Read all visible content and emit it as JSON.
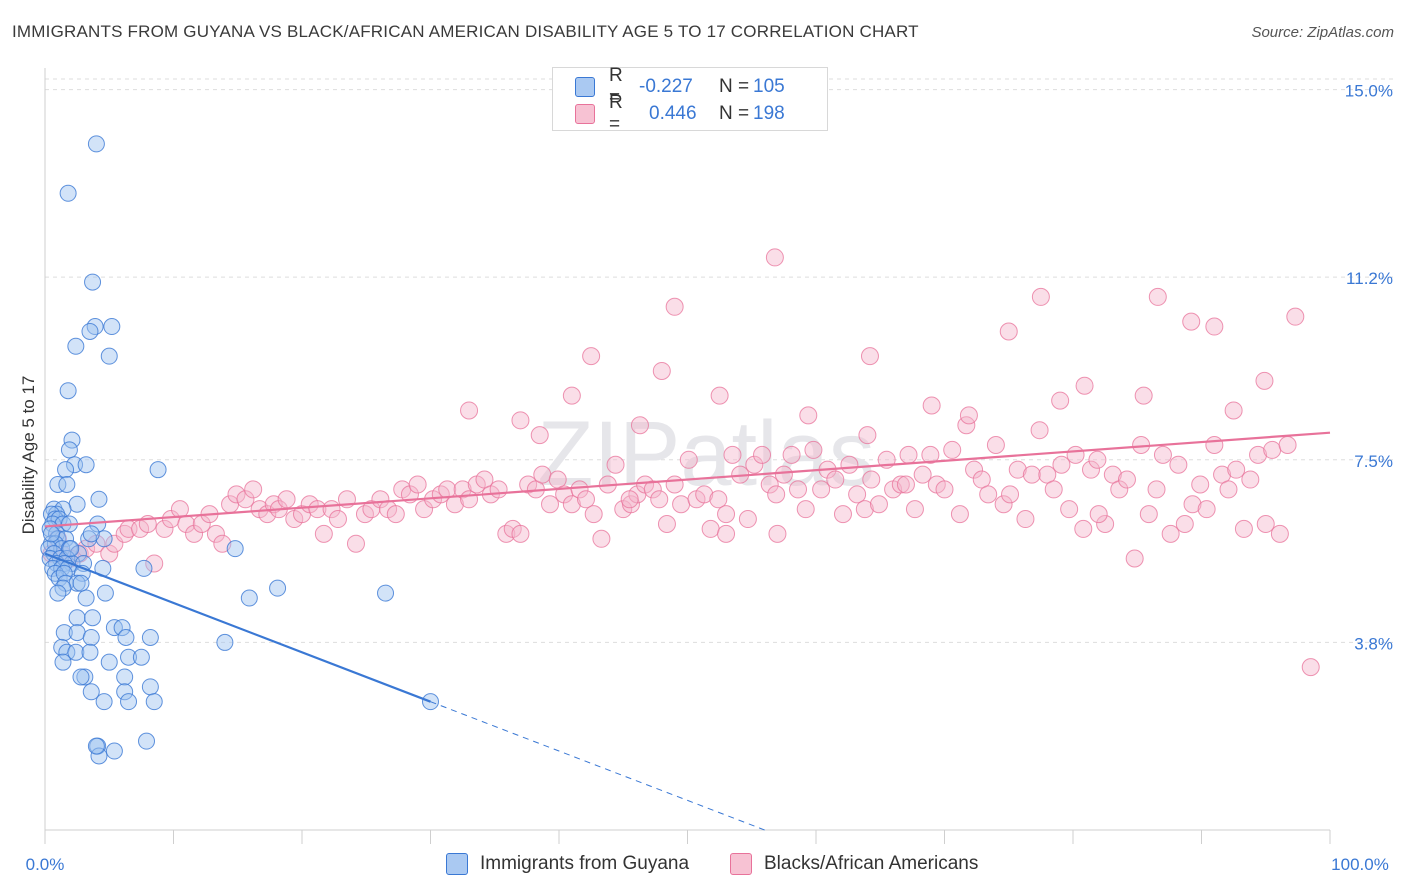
{
  "title": "IMMIGRANTS FROM GUYANA VS BLACK/AFRICAN AMERICAN DISABILITY AGE 5 TO 17 CORRELATION CHART",
  "source": "Source: ZipAtlas.com",
  "watermark": "ZIPatlas",
  "colors": {
    "blue": "#3a78d4",
    "blue_fill": "#9cc1ef",
    "pink": "#e8729a",
    "pink_fill": "#f5b6cb",
    "value_text": "#3a78d4",
    "grid": "#dddddd"
  },
  "legend": {
    "rows": [
      {
        "r_label": "R =",
        "r_value": "-0.227",
        "n_label": "N =",
        "n_value": "105"
      },
      {
        "r_label": "R =",
        "r_value": "0.446",
        "n_label": "N =",
        "n_value": "198"
      }
    ]
  },
  "bottom_legend": {
    "series1": "Immigrants from Guyana",
    "series2": "Blacks/African Americans"
  },
  "chart_data": {
    "type": "scatter",
    "xlabel": "",
    "ylabel": "Disability Age 5 to 17",
    "xlim": [
      0,
      100
    ],
    "ylim": [
      0,
      15.6
    ],
    "x_tick_labels": [
      "0.0%",
      "100.0%"
    ],
    "y_ticks": [
      3.8,
      7.5,
      11.2,
      15.0
    ],
    "y_tick_labels": [
      "3.8%",
      "7.5%",
      "11.2%",
      "15.0%"
    ],
    "grid": "horizontal dashed",
    "legend_position": "top-center",
    "series": [
      {
        "name": "Immigrants from Guyana",
        "color": "#3a78d4",
        "r": -0.227,
        "n": 105,
        "trend": {
          "x": [
            0,
            30
          ],
          "y": [
            5.6,
            2.6
          ],
          "extension_to": [
            56,
            0.0
          ]
        },
        "points": [
          [
            4,
            13.9
          ],
          [
            1.8,
            12.9
          ],
          [
            3.7,
            11.1
          ],
          [
            3.9,
            10.2
          ],
          [
            5.2,
            10.2
          ],
          [
            3.5,
            10.1
          ],
          [
            2.4,
            9.8
          ],
          [
            5.0,
            9.6
          ],
          [
            1.8,
            8.9
          ],
          [
            2.1,
            7.9
          ],
          [
            1.9,
            7.7
          ],
          [
            2.3,
            7.4
          ],
          [
            3.2,
            7.4
          ],
          [
            1.6,
            7.3
          ],
          [
            8.8,
            7.3
          ],
          [
            1.0,
            7.0
          ],
          [
            1.7,
            7.0
          ],
          [
            2.5,
            6.6
          ],
          [
            4.2,
            6.7
          ],
          [
            0.7,
            6.5
          ],
          [
            1.4,
            6.5
          ],
          [
            0.9,
            6.4
          ],
          [
            0.5,
            6.4
          ],
          [
            0.8,
            6.3
          ],
          [
            1.1,
            6.3
          ],
          [
            0.6,
            6.2
          ],
          [
            1.4,
            6.2
          ],
          [
            4.1,
            6.2
          ],
          [
            0.4,
            6.1
          ],
          [
            0.9,
            6.0
          ],
          [
            1.0,
            5.9
          ],
          [
            1.6,
            5.9
          ],
          [
            3.4,
            5.9
          ],
          [
            4.6,
            5.9
          ],
          [
            0.5,
            5.8
          ],
          [
            0.8,
            5.8
          ],
          [
            1.3,
            5.7
          ],
          [
            0.3,
            5.7
          ],
          [
            1.9,
            5.7
          ],
          [
            0.7,
            5.6
          ],
          [
            2.6,
            5.6
          ],
          [
            0.4,
            5.5
          ],
          [
            1.2,
            5.5
          ],
          [
            1.7,
            5.5
          ],
          [
            0.9,
            5.4
          ],
          [
            2.1,
            5.4
          ],
          [
            3.0,
            5.4
          ],
          [
            1.5,
            5.4
          ],
          [
            0.6,
            5.3
          ],
          [
            4.5,
            5.3
          ],
          [
            1.3,
            5.3
          ],
          [
            1.8,
            5.3
          ],
          [
            2.9,
            5.2
          ],
          [
            7.7,
            5.3
          ],
          [
            0.8,
            5.2
          ],
          [
            1.1,
            5.1
          ],
          [
            1.5,
            5.2
          ],
          [
            14.8,
            5.7
          ],
          [
            1.6,
            5.0
          ],
          [
            2.5,
            5.0
          ],
          [
            1.4,
            4.9
          ],
          [
            1.0,
            4.8
          ],
          [
            4.7,
            4.8
          ],
          [
            18.1,
            4.9
          ],
          [
            26.5,
            4.8
          ],
          [
            3.2,
            4.7
          ],
          [
            15.9,
            4.7
          ],
          [
            2.5,
            4.3
          ],
          [
            3.7,
            4.3
          ],
          [
            1.5,
            4.0
          ],
          [
            2.5,
            4.0
          ],
          [
            5.4,
            4.1
          ],
          [
            6.0,
            4.1
          ],
          [
            3.6,
            3.9
          ],
          [
            6.3,
            3.9
          ],
          [
            8.2,
            3.9
          ],
          [
            14.0,
            3.8
          ],
          [
            1.3,
            3.7
          ],
          [
            1.7,
            3.6
          ],
          [
            2.4,
            3.6
          ],
          [
            3.5,
            3.6
          ],
          [
            1.4,
            3.4
          ],
          [
            5.0,
            3.4
          ],
          [
            6.5,
            3.5
          ],
          [
            7.5,
            3.5
          ],
          [
            3.1,
            3.1
          ],
          [
            6.2,
            3.1
          ],
          [
            2.8,
            3.1
          ],
          [
            3.6,
            2.8
          ],
          [
            6.2,
            2.8
          ],
          [
            8.2,
            2.9
          ],
          [
            4.6,
            2.6
          ],
          [
            6.5,
            2.6
          ],
          [
            8.5,
            2.6
          ],
          [
            30.0,
            2.6
          ],
          [
            7.9,
            1.8
          ],
          [
            4.1,
            1.7
          ],
          [
            4.2,
            1.5
          ],
          [
            5.4,
            1.6
          ],
          [
            4.0,
            1.7
          ],
          [
            2.0,
            5.7
          ],
          [
            0.5,
            6.0
          ],
          [
            1.9,
            6.2
          ],
          [
            3.6,
            6.0
          ],
          [
            2.8,
            5.0
          ]
        ]
      },
      {
        "name": "Blacks/African Americans",
        "color": "#e8729a",
        "r": 0.446,
        "n": 198,
        "trend": {
          "x": [
            0,
            100
          ],
          "y": [
            6.15,
            8.05
          ]
        },
        "points": [
          [
            0.5,
            5.6
          ],
          [
            1.0,
            5.9
          ],
          [
            1.3,
            5.6
          ],
          [
            2.0,
            5.5
          ],
          [
            2.7,
            5.6
          ],
          [
            3.2,
            5.7
          ],
          [
            4.0,
            5.8
          ],
          [
            5.0,
            5.6
          ],
          [
            5.4,
            5.8
          ],
          [
            6.2,
            6.0
          ],
          [
            6.5,
            6.1
          ],
          [
            7.4,
            6.1
          ],
          [
            8.0,
            6.2
          ],
          [
            8.5,
            5.4
          ],
          [
            9.3,
            6.1
          ],
          [
            9.8,
            6.3
          ],
          [
            10.5,
            6.5
          ],
          [
            11.0,
            6.2
          ],
          [
            11.6,
            6.0
          ],
          [
            12.2,
            6.2
          ],
          [
            12.8,
            6.4
          ],
          [
            13.3,
            6.0
          ],
          [
            13.8,
            5.8
          ],
          [
            14.4,
            6.6
          ],
          [
            14.9,
            6.8
          ],
          [
            15.6,
            6.7
          ],
          [
            16.2,
            6.9
          ],
          [
            16.7,
            6.5
          ],
          [
            17.3,
            6.4
          ],
          [
            17.8,
            6.6
          ],
          [
            18.2,
            6.5
          ],
          [
            18.8,
            6.7
          ],
          [
            19.4,
            6.3
          ],
          [
            20.0,
            6.4
          ],
          [
            20.6,
            6.6
          ],
          [
            21.2,
            6.5
          ],
          [
            21.7,
            6.0
          ],
          [
            22.3,
            6.5
          ],
          [
            22.8,
            6.3
          ],
          [
            23.5,
            6.7
          ],
          [
            24.2,
            5.8
          ],
          [
            24.9,
            6.4
          ],
          [
            25.4,
            6.5
          ],
          [
            26.1,
            6.7
          ],
          [
            26.7,
            6.5
          ],
          [
            27.3,
            6.4
          ],
          [
            27.8,
            6.9
          ],
          [
            28.4,
            6.8
          ],
          [
            29.0,
            7.0
          ],
          [
            29.5,
            6.5
          ],
          [
            30.2,
            6.7
          ],
          [
            30.8,
            6.8
          ],
          [
            31.3,
            6.9
          ],
          [
            31.9,
            6.6
          ],
          [
            32.5,
            6.9
          ],
          [
            33.0,
            6.7
          ],
          [
            33.6,
            7.0
          ],
          [
            34.2,
            7.1
          ],
          [
            34.7,
            6.8
          ],
          [
            35.3,
            6.9
          ],
          [
            35.9,
            6.0
          ],
          [
            36.4,
            6.1
          ],
          [
            37.0,
            6.0
          ],
          [
            37.6,
            7.0
          ],
          [
            38.2,
            6.9
          ],
          [
            38.7,
            7.2
          ],
          [
            39.3,
            6.6
          ],
          [
            39.9,
            7.1
          ],
          [
            40.4,
            6.8
          ],
          [
            41.0,
            6.6
          ],
          [
            41.6,
            6.9
          ],
          [
            42.1,
            6.7
          ],
          [
            42.7,
            6.4
          ],
          [
            43.3,
            5.9
          ],
          [
            43.8,
            7.0
          ],
          [
            44.4,
            7.4
          ],
          [
            45.0,
            6.5
          ],
          [
            45.6,
            6.6
          ],
          [
            46.1,
            6.8
          ],
          [
            46.7,
            7.0
          ],
          [
            47.3,
            6.9
          ],
          [
            47.8,
            6.7
          ],
          [
            48.4,
            6.2
          ],
          [
            49.0,
            7.0
          ],
          [
            49.5,
            6.6
          ],
          [
            50.1,
            7.5
          ],
          [
            50.7,
            6.7
          ],
          [
            51.3,
            6.8
          ],
          [
            51.8,
            6.1
          ],
          [
            52.4,
            6.7
          ],
          [
            53.0,
            6.4
          ],
          [
            53.5,
            7.6
          ],
          [
            54.1,
            7.2
          ],
          [
            54.7,
            6.3
          ],
          [
            55.2,
            7.4
          ],
          [
            55.8,
            7.6
          ],
          [
            56.4,
            7.0
          ],
          [
            56.9,
            6.8
          ],
          [
            57.5,
            7.2
          ],
          [
            58.1,
            7.6
          ],
          [
            58.6,
            6.9
          ],
          [
            59.2,
            6.5
          ],
          [
            59.8,
            7.7
          ],
          [
            60.4,
            6.9
          ],
          [
            60.9,
            7.3
          ],
          [
            61.5,
            7.1
          ],
          [
            62.1,
            6.4
          ],
          [
            62.6,
            7.4
          ],
          [
            63.2,
            6.8
          ],
          [
            63.8,
            6.5
          ],
          [
            64.3,
            7.1
          ],
          [
            64.9,
            6.6
          ],
          [
            65.5,
            7.5
          ],
          [
            66.0,
            6.9
          ],
          [
            66.6,
            7.0
          ],
          [
            67.2,
            7.6
          ],
          [
            67.7,
            6.5
          ],
          [
            68.3,
            7.2
          ],
          [
            68.9,
            7.6
          ],
          [
            69.4,
            7.0
          ],
          [
            70.0,
            6.9
          ],
          [
            70.6,
            7.7
          ],
          [
            71.2,
            6.4
          ],
          [
            71.7,
            8.2
          ],
          [
            72.3,
            7.3
          ],
          [
            72.9,
            7.1
          ],
          [
            73.4,
            6.8
          ],
          [
            74.0,
            7.8
          ],
          [
            74.6,
            6.6
          ],
          [
            75.1,
            6.8
          ],
          [
            75.7,
            7.3
          ],
          [
            76.3,
            6.3
          ],
          [
            76.8,
            7.2
          ],
          [
            77.4,
            8.1
          ],
          [
            78.0,
            7.2
          ],
          [
            78.5,
            6.9
          ],
          [
            79.1,
            7.4
          ],
          [
            79.7,
            6.5
          ],
          [
            80.2,
            7.6
          ],
          [
            80.8,
            6.1
          ],
          [
            81.4,
            7.3
          ],
          [
            81.9,
            7.5
          ],
          [
            82.5,
            6.2
          ],
          [
            83.1,
            7.2
          ],
          [
            83.6,
            6.9
          ],
          [
            84.2,
            7.1
          ],
          [
            84.8,
            5.5
          ],
          [
            85.3,
            7.8
          ],
          [
            85.9,
            6.4
          ],
          [
            86.5,
            6.9
          ],
          [
            87.0,
            7.6
          ],
          [
            87.6,
            6.0
          ],
          [
            88.2,
            7.4
          ],
          [
            88.7,
            6.2
          ],
          [
            89.3,
            6.6
          ],
          [
            89.9,
            7.0
          ],
          [
            90.4,
            6.5
          ],
          [
            91.0,
            7.8
          ],
          [
            91.6,
            7.2
          ],
          [
            92.1,
            6.9
          ],
          [
            92.7,
            7.3
          ],
          [
            93.3,
            6.1
          ],
          [
            93.8,
            7.1
          ],
          [
            94.4,
            7.6
          ],
          [
            95.0,
            6.2
          ],
          [
            95.5,
            7.7
          ],
          [
            96.1,
            6.0
          ],
          [
            96.7,
            7.8
          ],
          [
            64.2,
            9.6
          ],
          [
            71.9,
            8.4
          ],
          [
            75.0,
            10.1
          ],
          [
            85.5,
            8.8
          ],
          [
            89.2,
            10.3
          ],
          [
            91.0,
            10.2
          ],
          [
            97.3,
            10.4
          ],
          [
            98.5,
            3.3
          ],
          [
            52.5,
            8.8
          ],
          [
            59.4,
            8.4
          ],
          [
            69.0,
            8.6
          ],
          [
            79.0,
            8.7
          ],
          [
            80.9,
            9.0
          ],
          [
            86.6,
            10.8
          ],
          [
            92.5,
            8.5
          ],
          [
            94.9,
            9.1
          ],
          [
            77.5,
            10.8
          ],
          [
            67.0,
            7.0
          ],
          [
            57.0,
            6.0
          ],
          [
            49.0,
            10.6
          ],
          [
            41.0,
            8.8
          ],
          [
            48.0,
            9.3
          ],
          [
            56.8,
            11.6
          ],
          [
            64.0,
            8.0
          ],
          [
            53.0,
            6.0
          ],
          [
            45.5,
            6.7
          ],
          [
            46.3,
            8.2
          ],
          [
            37.0,
            8.3
          ],
          [
            33.0,
            8.5
          ],
          [
            42.5,
            9.6
          ],
          [
            38.5,
            8.0
          ],
          [
            82.0,
            6.4
          ]
        ]
      }
    ]
  }
}
